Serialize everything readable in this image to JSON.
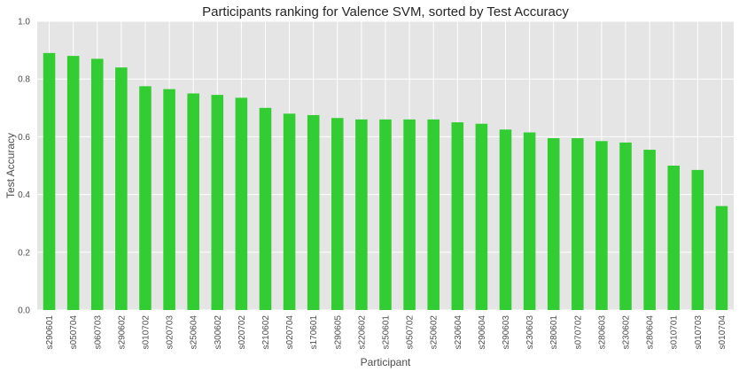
{
  "chart_data": {
    "type": "bar",
    "title": "Participants ranking for Valence SVM, sorted by Test Accuracy",
    "xlabel": "Participant",
    "ylabel": "Test Accuracy",
    "ylim": [
      0,
      1.0
    ],
    "yticks": [
      0.0,
      0.2,
      0.4,
      0.6,
      0.8,
      1.0
    ],
    "grid": true,
    "bar_color": "#32cd32",
    "background_color": "#e5e5e5",
    "categories": [
      "s290601",
      "s050704",
      "s060703",
      "s290602",
      "s010702",
      "s020703",
      "s250604",
      "s300602",
      "s020702",
      "s210602",
      "s020704",
      "s170601",
      "s290605",
      "s220602",
      "s250601",
      "s050702",
      "s250602",
      "s230604",
      "s290604",
      "s290603",
      "s230603",
      "s280601",
      "s070702",
      "s280603",
      "s230602",
      "s280604",
      "s010701",
      "s010703",
      "s010704"
    ],
    "values": [
      0.89,
      0.88,
      0.87,
      0.84,
      0.775,
      0.765,
      0.75,
      0.745,
      0.735,
      0.7,
      0.68,
      0.675,
      0.665,
      0.66,
      0.66,
      0.66,
      0.66,
      0.65,
      0.645,
      0.625,
      0.615,
      0.595,
      0.595,
      0.585,
      0.58,
      0.555,
      0.5,
      0.485,
      0.36
    ]
  }
}
